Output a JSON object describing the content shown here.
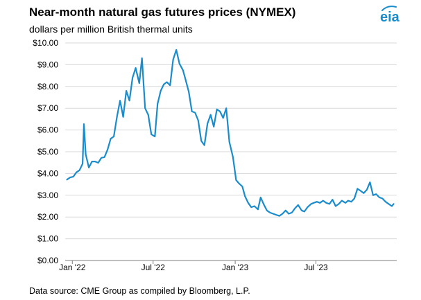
{
  "header": {
    "title": "Near-month natural gas futures prices (NYMEX)",
    "subtitle": "dollars per million British thermal units",
    "logo_text": "eia"
  },
  "footer": {
    "source": "Data source: CME Group as compiled by Bloomberg, L.P."
  },
  "colors": {
    "line": "#1a8ccc",
    "grid": "#d9d9d9",
    "axis": "#7f7f7f",
    "logo": "#1a8ccc"
  },
  "chart_data": {
    "type": "line",
    "title": "Near-month natural gas futures prices (NYMEX)",
    "subtitle": "dollars per million British thermal units",
    "ylim": [
      0,
      10
    ],
    "xlim": [
      "2021-12-16",
      "2023-12-29"
    ],
    "grid": true,
    "y_ticks": [
      "$0.00",
      "$1.00",
      "$2.00",
      "$3.00",
      "$4.00",
      "$5.00",
      "$6.00",
      "$7.00",
      "$8.00",
      "$9.00",
      "$10.00"
    ],
    "x_ticks": [
      {
        "label": "Jan '22",
        "date": "2022-01-01"
      },
      {
        "label": "Jul '22",
        "date": "2022-07-01"
      },
      {
        "label": "Jan '23",
        "date": "2023-01-01"
      },
      {
        "label": "Jul '23",
        "date": "2023-07-01"
      }
    ],
    "series": [
      {
        "x": [
          "2021-12-20",
          "2021-12-27",
          "2022-01-03",
          "2022-01-10",
          "2022-01-17",
          "2022-01-24",
          "2022-01-27",
          "2022-01-31",
          "2022-02-07",
          "2022-02-14",
          "2022-02-21",
          "2022-02-28",
          "2022-03-07",
          "2022-03-14",
          "2022-03-21",
          "2022-03-28",
          "2022-04-04",
          "2022-04-11",
          "2022-04-18",
          "2022-04-25",
          "2022-05-02",
          "2022-05-09",
          "2022-05-16",
          "2022-05-23",
          "2022-05-31",
          "2022-06-06",
          "2022-06-13",
          "2022-06-20",
          "2022-06-27",
          "2022-07-05",
          "2022-07-11",
          "2022-07-18",
          "2022-07-25",
          "2022-08-01",
          "2022-08-08",
          "2022-08-15",
          "2022-08-22",
          "2022-08-29",
          "2022-09-06",
          "2022-09-12",
          "2022-09-19",
          "2022-09-26",
          "2022-10-03",
          "2022-10-10",
          "2022-10-17",
          "2022-10-24",
          "2022-10-31",
          "2022-11-07",
          "2022-11-14",
          "2022-11-21",
          "2022-11-28",
          "2022-12-05",
          "2022-12-12",
          "2022-12-19",
          "2022-12-27",
          "2023-01-03",
          "2023-01-09",
          "2023-01-17",
          "2023-01-23",
          "2023-01-30",
          "2023-02-06",
          "2023-02-13",
          "2023-02-21",
          "2023-02-27",
          "2023-03-06",
          "2023-03-13",
          "2023-03-20",
          "2023-03-27",
          "2023-04-03",
          "2023-04-10",
          "2023-04-17",
          "2023-04-24",
          "2023-05-01",
          "2023-05-08",
          "2023-05-15",
          "2023-05-22",
          "2023-05-30",
          "2023-06-05",
          "2023-06-12",
          "2023-06-20",
          "2023-06-26",
          "2023-07-03",
          "2023-07-10",
          "2023-07-17",
          "2023-07-24",
          "2023-07-31",
          "2023-08-07",
          "2023-08-14",
          "2023-08-21",
          "2023-08-28",
          "2023-09-05",
          "2023-09-11",
          "2023-09-18",
          "2023-09-25",
          "2023-10-02",
          "2023-10-09",
          "2023-10-16",
          "2023-10-23",
          "2023-10-30",
          "2023-11-06",
          "2023-11-13",
          "2023-11-20",
          "2023-11-27",
          "2023-12-04",
          "2023-12-11",
          "2023-12-18",
          "2023-12-22"
        ],
        "values": [
          3.72,
          3.82,
          3.85,
          4.05,
          4.15,
          4.45,
          6.27,
          4.88,
          4.27,
          4.55,
          4.55,
          4.49,
          4.72,
          4.75,
          5.1,
          5.6,
          5.7,
          6.6,
          7.35,
          6.6,
          7.8,
          7.35,
          8.4,
          8.85,
          8.15,
          9.3,
          7.0,
          6.7,
          5.8,
          5.7,
          7.2,
          7.8,
          8.1,
          8.2,
          8.05,
          9.25,
          9.68,
          9.05,
          8.75,
          8.3,
          7.75,
          6.85,
          6.8,
          6.45,
          5.5,
          5.3,
          6.3,
          6.7,
          6.15,
          6.95,
          6.85,
          6.55,
          7.0,
          5.45,
          4.75,
          3.7,
          3.55,
          3.4,
          2.95,
          2.65,
          2.45,
          2.5,
          2.35,
          2.9,
          2.58,
          2.3,
          2.2,
          2.15,
          2.1,
          2.05,
          2.15,
          2.3,
          2.15,
          2.2,
          2.4,
          2.55,
          2.3,
          2.25,
          2.45,
          2.6,
          2.65,
          2.7,
          2.65,
          2.75,
          2.65,
          2.6,
          2.8,
          2.5,
          2.6,
          2.75,
          2.65,
          2.75,
          2.7,
          2.85,
          3.3,
          3.2,
          3.1,
          3.25,
          3.6,
          3.0,
          3.05,
          2.9,
          2.85,
          2.7,
          2.6,
          2.5,
          2.6
        ]
      }
    ]
  }
}
